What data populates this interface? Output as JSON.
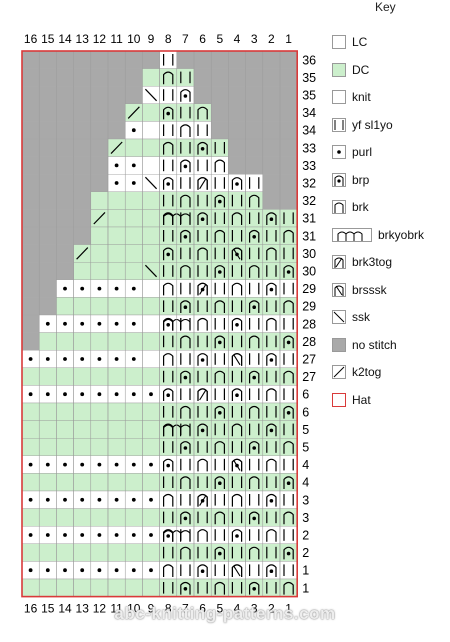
{
  "key_title": "Key",
  "col_numbers": [
    "16",
    "15",
    "14",
    "13",
    "12",
    "11",
    "10",
    "9",
    "8",
    "7",
    "6",
    "5",
    "4",
    "3",
    "2",
    "1"
  ],
  "row_labels": [
    "36",
    "35",
    "35",
    "34",
    "34",
    "33",
    "33",
    "32",
    "32",
    "31",
    "31",
    "30",
    "30",
    "29",
    "29",
    "28",
    "28",
    "27",
    "27",
    "6",
    "6",
    "5",
    "5",
    "4",
    "4",
    "3",
    "3",
    "2",
    "2",
    "1",
    "1"
  ],
  "legend": [
    {
      "name": "LC",
      "icon": "lc-swatch",
      "color": "#ffffff"
    },
    {
      "name": "DC",
      "icon": "dc-swatch",
      "color": "#ccefcc"
    },
    {
      "name": "knit",
      "icon": "knit-swatch",
      "color": "#ffffff"
    },
    {
      "name": "yf sl1yo",
      "icon": "yf-sl1yo-icon",
      "color": "#ffffff"
    },
    {
      "name": "purl",
      "icon": "purl-icon",
      "color": "#ffffff"
    },
    {
      "name": "brp",
      "icon": "brp-icon",
      "color": "#ffffff"
    },
    {
      "name": "brk",
      "icon": "brk-icon",
      "color": "#ffffff"
    },
    {
      "name": "brkyobrk",
      "icon": "brkyobrk-icon",
      "color": "#ffffff"
    },
    {
      "name": "brk3tog",
      "icon": "brk3tog-icon",
      "color": "#ffffff"
    },
    {
      "name": "brsssk",
      "icon": "brsssk-icon",
      "color": "#ffffff"
    },
    {
      "name": "ssk",
      "icon": "ssk-icon",
      "color": "#ffffff"
    },
    {
      "name": "no stitch",
      "icon": "no-stitch-swatch",
      "color": "#a9a9a9"
    },
    {
      "name": "k2tog",
      "icon": "k2tog-icon",
      "color": "#ffffff"
    },
    {
      "name": "Hat",
      "icon": "hat-outline-swatch",
      "color": "#d93a3a"
    }
  ],
  "footer": "abc-knitting-patterns.com",
  "colors": {
    "dc": "#ccefcc",
    "lc": "#ffffff",
    "nostitch": "#a9a9a9",
    "grid": "#9a9a9a",
    "outline": "#d93a3a"
  }
}
